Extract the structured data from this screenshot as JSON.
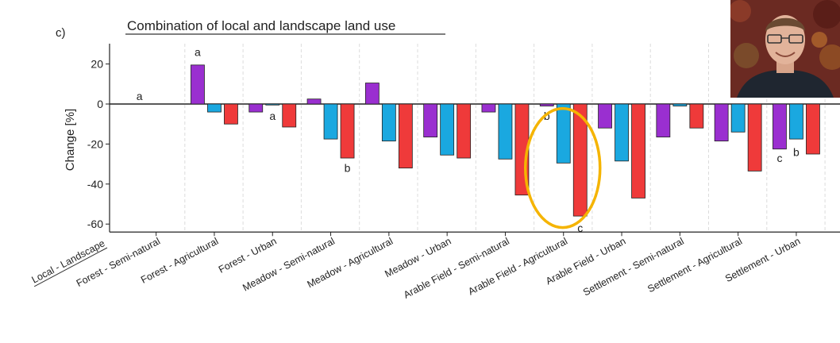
{
  "panel_label": "c)",
  "title": "Combination of local and landscape land use",
  "chart_data": {
    "type": "bar",
    "title": "Combination of local and landscape land use",
    "ylabel": "Change [%]",
    "xlabel": "Local - Landscape",
    "ylim": [
      -64,
      30
    ],
    "yticks": [
      20,
      0,
      -20,
      -40,
      -60
    ],
    "grid": "vertical dashed",
    "categories": [
      "Forest - Semi-natural",
      "Forest - Agricultural",
      "Forest - Urban",
      "Meadow - Semi-natural",
      "Meadow - Agricultural",
      "Meadow - Urban",
      "Arable Field - Semi-natural",
      "Arable Field - Agricultural",
      "Arable Field - Urban",
      "Settlement - Semi-natural",
      "Settlement - Agricultural",
      "Settlement - Urban"
    ],
    "series": [
      {
        "color": "#9a2fd0",
        "values": [
          0,
          19.5,
          -4,
          2.5,
          10.5,
          -16.5,
          -4,
          -1,
          -12,
          -16.5,
          -18.5,
          -22.5
        ]
      },
      {
        "color": "#1aa8e0",
        "values": [
          0,
          -4,
          -0.5,
          -17.5,
          -18.5,
          -25.5,
          -27.5,
          -29.5,
          -28.5,
          -1,
          -14,
          -17.5
        ]
      },
      {
        "color": "#ef3a3a",
        "values": [
          0,
          -10,
          -11.5,
          -27,
          -32,
          -27,
          -45.5,
          -56,
          -47,
          -12,
          -33.5,
          -25
        ]
      }
    ],
    "letters": [
      {
        "text": "a",
        "category": 0,
        "series": 0,
        "at": 4
      },
      {
        "text": "a",
        "category": 1,
        "series": 0,
        "at": 26
      },
      {
        "text": "a",
        "category": 2,
        "series": 1,
        "at": -6
      },
      {
        "text": "b",
        "category": 3,
        "series": 2,
        "at": -32
      },
      {
        "text": "b",
        "category": 7,
        "series": 0,
        "at": -6
      },
      {
        "text": "c",
        "category": 7,
        "series": 2,
        "at": -62
      },
      {
        "text": "c",
        "category": 11,
        "series": 0,
        "at": -27
      },
      {
        "text": "b",
        "category": 11,
        "series": 1,
        "at": -24
      }
    ],
    "highlight": {
      "category": 7,
      "color": "#f5b400"
    }
  }
}
